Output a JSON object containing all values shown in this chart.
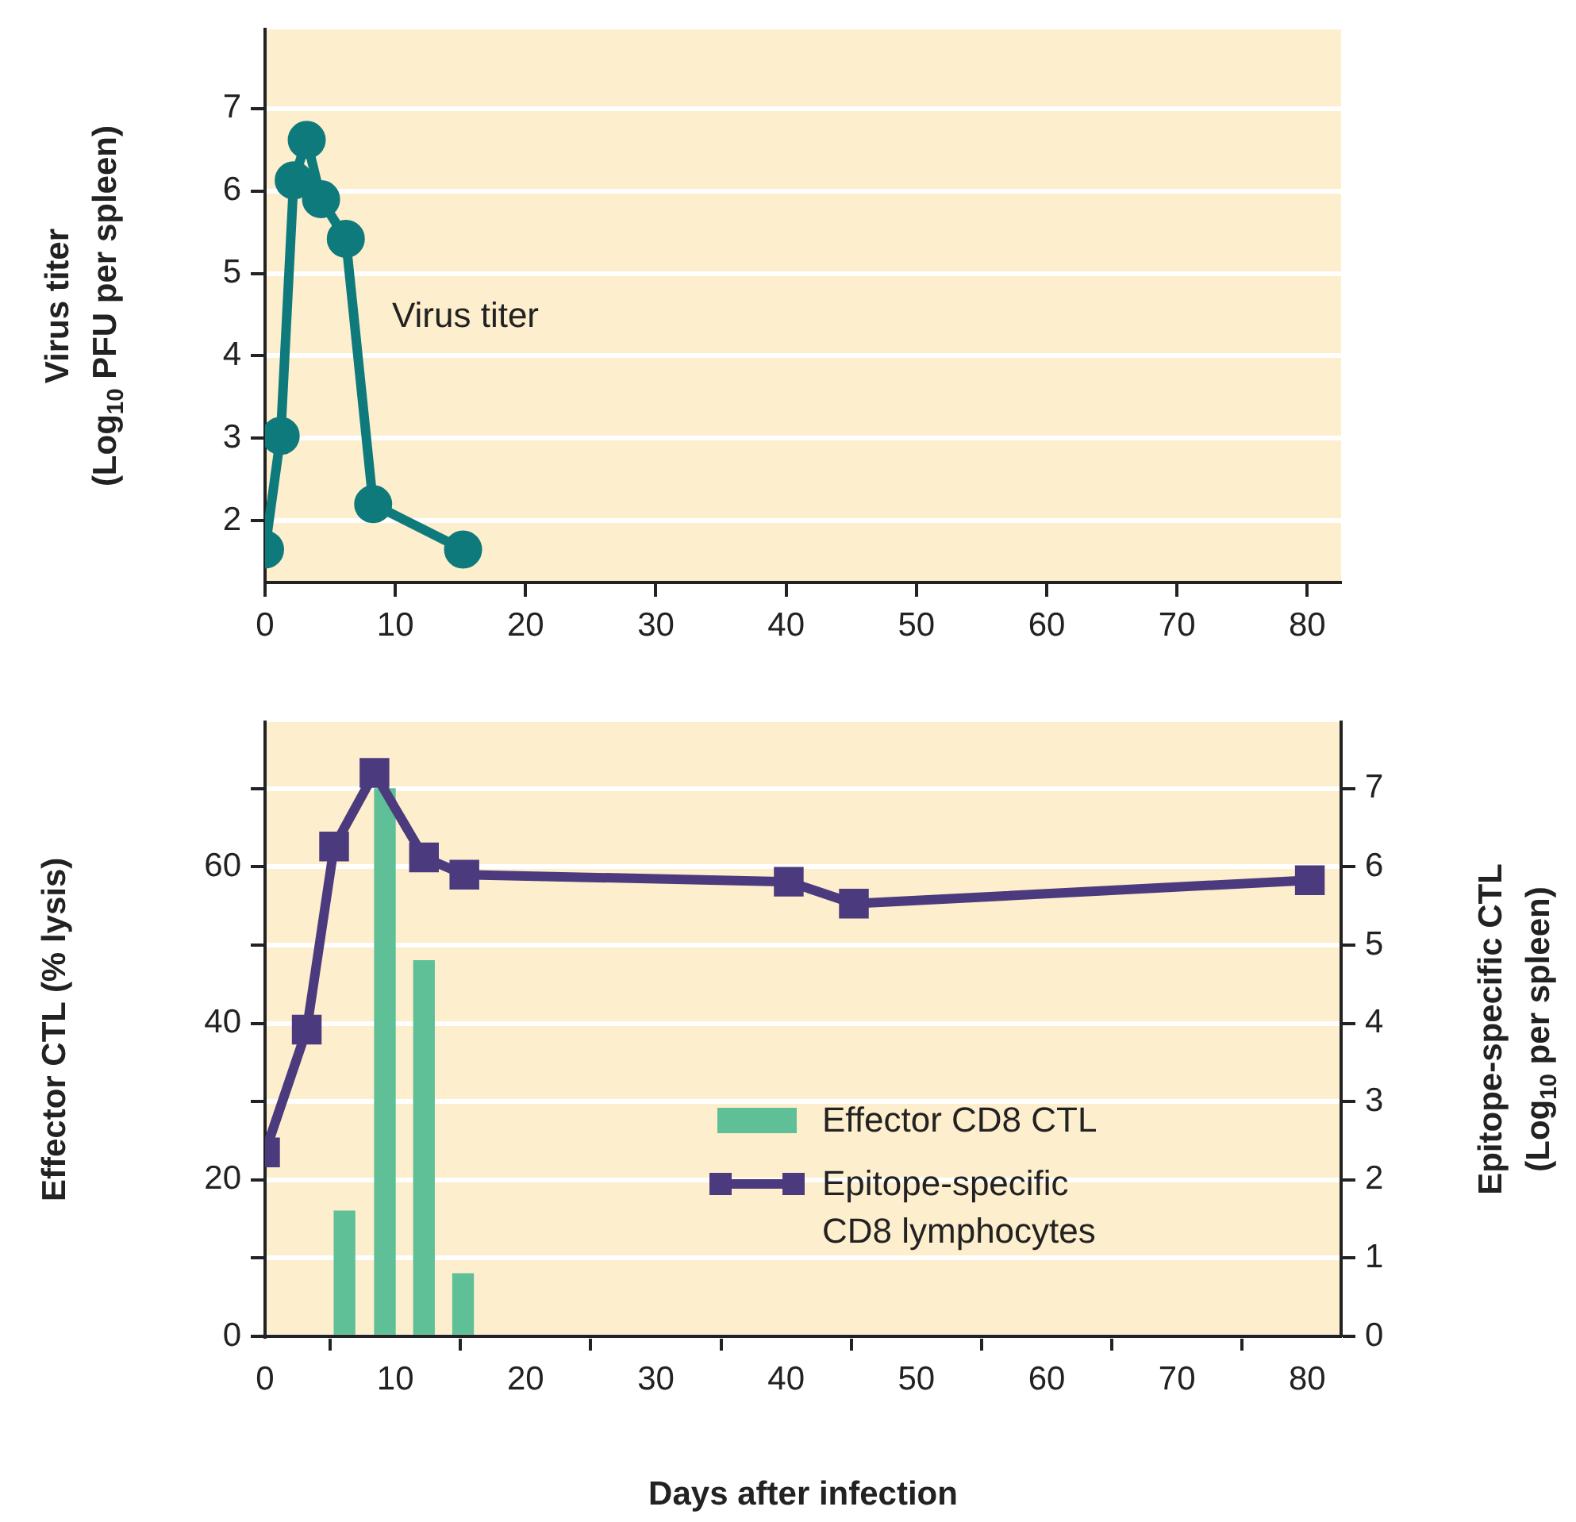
{
  "chart_data": [
    {
      "type": "line",
      "ylabel": "Virus titer\n(Log$_{10}$ PFU per spleen)",
      "xlim": [
        0,
        82.6
      ],
      "xticks": [
        0,
        10,
        20,
        30,
        40,
        50,
        60,
        70,
        80
      ],
      "ylim": [
        1.25,
        7.96
      ],
      "yticks": [
        2,
        3,
        4,
        5,
        6,
        7
      ],
      "grid": "y",
      "marker": "circle",
      "legend": false,
      "series": [
        {
          "name": "Virus titer",
          "color": "#0f7a7c",
          "x": [
            0,
            1.2,
            2.2,
            3.2,
            4.3,
            6.2,
            8.3,
            15.2
          ],
          "values": [
            1.65,
            3.03,
            6.13,
            6.62,
            5.9,
            5.42,
            2.2,
            1.65
          ]
        }
      ]
    },
    {
      "type": "line",
      "xlabel": "Days after infection",
      "ylabel": "Effector CTL (% lysis)",
      "y2label": "Epitope-specific CTL\n(Log$_{10}$ per spleen)",
      "xlim": [
        0,
        82.6
      ],
      "xticks": [
        0,
        10,
        20,
        30,
        40,
        50,
        60,
        70,
        80
      ],
      "ylim": [
        0,
        78.5
      ],
      "yticks": [
        0,
        {
          "value": 10,
          "label": null
        },
        20,
        {
          "value": 30,
          "label": null
        },
        40,
        {
          "value": 50,
          "label": null
        },
        60,
        {
          "value": 70,
          "label": null
        }
      ],
      "y2lim": [
        0,
        7.85
      ],
      "y2ticks": [
        0,
        1,
        2,
        3,
        4,
        5,
        6,
        7
      ],
      "grid": "y",
      "legend": "bottom",
      "marker": "square",
      "series": [
        {
          "name": "Effector CD8 CTL",
          "type": "bar",
          "color": "#5fbf96",
          "x": [
            6.1,
            9.2,
            12.2,
            15.2
          ],
          "values": [
            16,
            70,
            48,
            8
          ]
        },
        {
          "name": "Epitope-specific\nCD8 lymphocytes",
          "type": "line",
          "axis": "y2",
          "color": "#4b3b7e",
          "x": [
            0,
            3.2,
            5.3,
            8.4,
            12.2,
            15.3,
            40.2,
            45.2,
            80.2
          ],
          "values": [
            2.35,
            3.92,
            6.26,
            7.2,
            6.12,
            5.9,
            5.81,
            5.53,
            5.83
          ]
        }
      ]
    }
  ]
}
